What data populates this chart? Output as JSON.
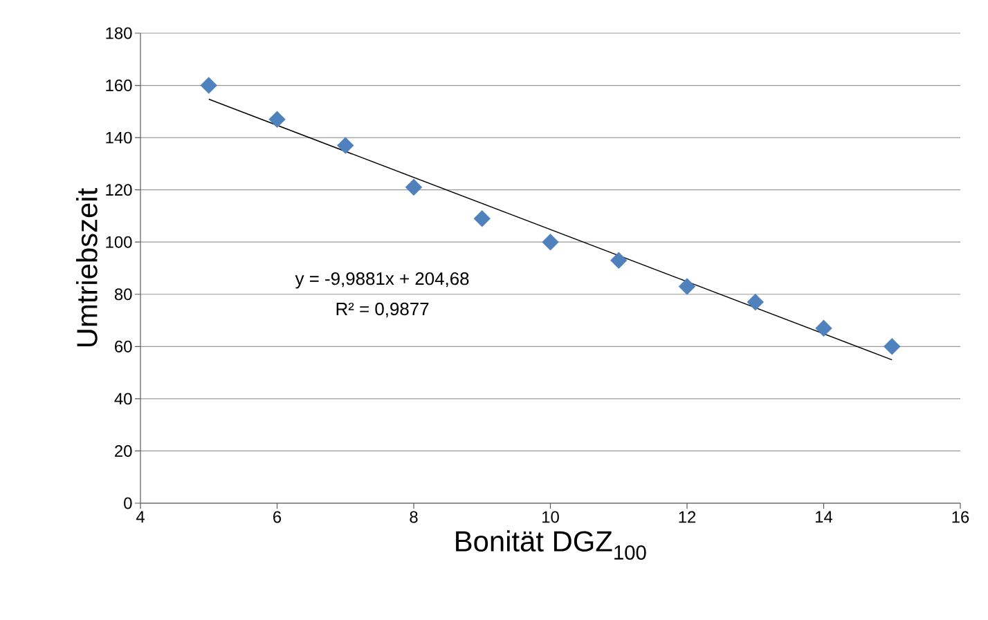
{
  "chart_data": {
    "type": "scatter",
    "xlabel": "Bonität DGZ$_{100}$",
    "ylabel": "Umtriebszeit",
    "annotations": [
      "y = -9,9881x + 204,68",
      "R² = 0,9877"
    ],
    "series": [
      {
        "x": [
          5,
          6,
          7,
          8,
          9,
          10,
          11,
          12,
          13,
          14,
          15
        ],
        "values": [
          160,
          147,
          137,
          121,
          109,
          100,
          93,
          83,
          77,
          67,
          60
        ],
        "color": "#4f81bd",
        "marker": "diamond"
      },
      {
        "type": "line",
        "x": [
          5,
          15
        ],
        "values": [
          154.7,
          54.9
        ],
        "color": "#000000",
        "line_style": "solid"
      }
    ],
    "xlim": [
      4,
      16
    ],
    "xticks": [
      4,
      6,
      8,
      10,
      12,
      14,
      16
    ],
    "ylim": [
      0,
      180
    ],
    "yticks": [
      0,
      20,
      40,
      60,
      80,
      100,
      120,
      140,
      160,
      180
    ],
    "grid": "y"
  }
}
